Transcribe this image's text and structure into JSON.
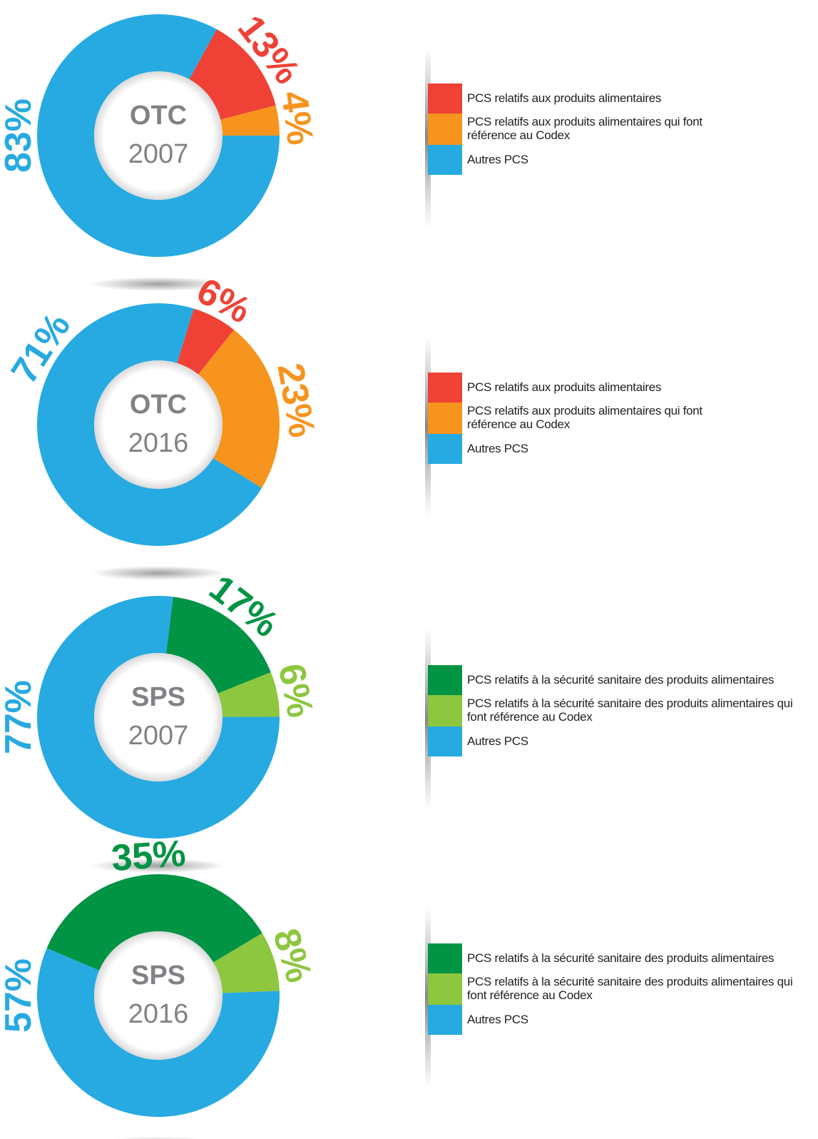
{
  "chart_data": [
    {
      "type": "donut",
      "title": "OTC",
      "subtitle": "2007",
      "categories": [
        "PCS relatifs aux produits alimentaires",
        "PCS relatifs aux produits alimentaires qui font référence au Codex",
        "Autres PCS"
      ],
      "values": [
        13,
        4,
        83
      ],
      "value_labels": [
        "13%",
        "4%",
        "83%"
      ],
      "colors": [
        "#ef4136",
        "#f7941d",
        "#27aae1"
      ]
    },
    {
      "type": "donut",
      "title": "OTC",
      "subtitle": "2016",
      "categories": [
        "PCS relatifs aux produits alimentaires",
        "PCS relatifs aux produits alimentaires qui font référence au Codex",
        "Autres PCS"
      ],
      "values": [
        6,
        23,
        71
      ],
      "value_labels": [
        "6%",
        "23%",
        "71%"
      ],
      "colors": [
        "#ef4136",
        "#f7941d",
        "#27aae1"
      ]
    },
    {
      "type": "donut",
      "title": "SPS",
      "subtitle": "2007",
      "categories": [
        "PCS relatifs à la sécurité sanitaire des produits alimentaires",
        "PCS relatifs à la sécurité sanitaire des produits alimentaires qui font référence au Codex",
        "Autres PCS"
      ],
      "values": [
        17,
        6,
        77
      ],
      "value_labels": [
        "17%",
        "6%",
        "77%"
      ],
      "colors": [
        "#009444",
        "#8dc63f",
        "#27aae1"
      ]
    },
    {
      "type": "donut",
      "title": "SPS",
      "subtitle": "2016",
      "categories": [
        "PCS relatifs à la sécurité sanitaire des produits alimentaires",
        "PCS relatifs à la sécurité sanitaire des produits alimentaires qui font référence au Codex",
        "Autres PCS"
      ],
      "values": [
        35,
        8,
        57
      ],
      "value_labels": [
        "35%",
        "8%",
        "57%"
      ],
      "colors": [
        "#009444",
        "#8dc63f",
        "#27aae1"
      ]
    }
  ]
}
